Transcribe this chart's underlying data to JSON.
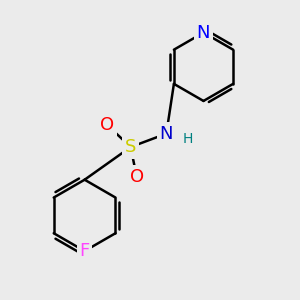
{
  "bg_color": "#ebebeb",
  "atom_colors": {
    "N_pyridine": "#0000ff",
    "N_sulfonamide": "#0000cc",
    "S": "#cccc00",
    "O": "#ff0000",
    "F": "#ff44ff",
    "H": "#008080",
    "C": "#000000"
  },
  "bond_color": "#000000",
  "bond_width": 1.8,
  "fig_width": 3.0,
  "fig_height": 3.0,
  "dpi": 100
}
